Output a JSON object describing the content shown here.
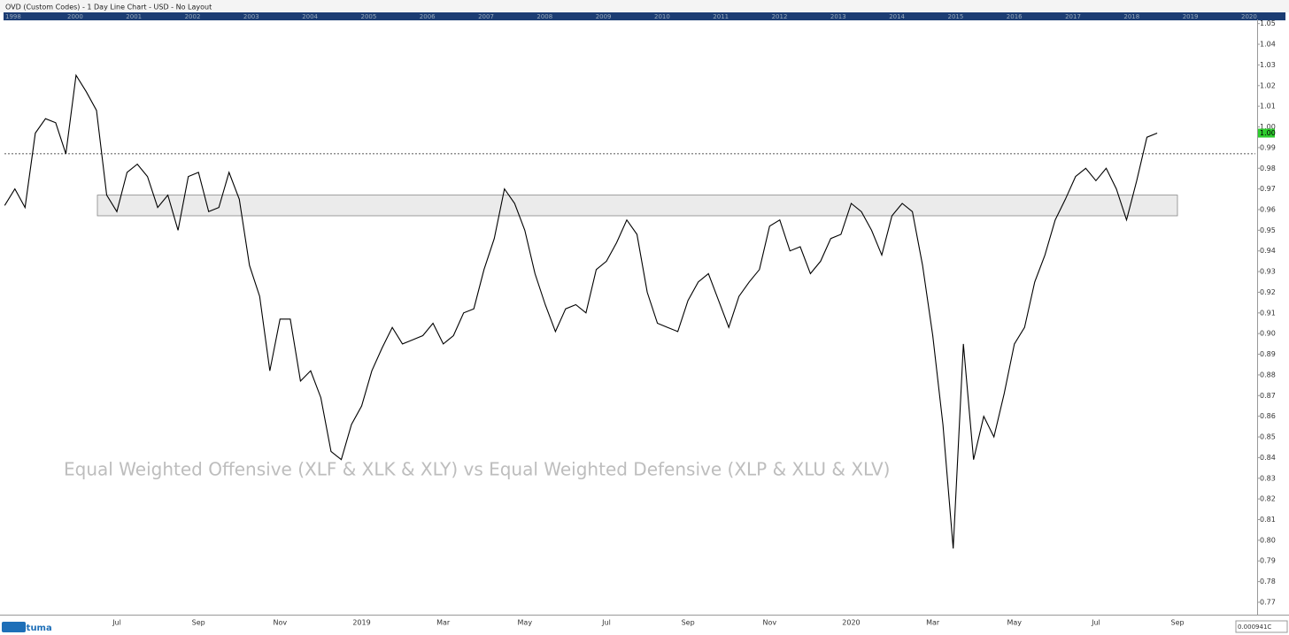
{
  "window_title": "OVD (Custom Codes) - 1 Day Line Chart - USD - No Layout",
  "navigator": {
    "years": [
      "1998",
      "2000",
      "2001",
      "2002",
      "2003",
      "2004",
      "2005",
      "2006",
      "2007",
      "2008",
      "2009",
      "2010",
      "2011",
      "2012",
      "2013",
      "2014",
      "2015",
      "2016",
      "2017",
      "2018",
      "2019",
      "2020"
    ]
  },
  "logo": "Optuma",
  "scale_readout": "0.000941C",
  "chart_data": {
    "type": "line",
    "annotation": "Equal Weighted Offensive (XLF & XLK & XLY) vs Equal Weighted Defensive (XLP & XLU & XLV)",
    "color": "#000000",
    "categories": [
      null,
      null,
      null,
      null,
      null,
      null,
      null,
      null,
      null,
      null,
      null,
      "Jul",
      null,
      null,
      null,
      null,
      null,
      null,
      null,
      "Sep",
      null,
      null,
      null,
      null,
      null,
      null,
      null,
      "Nov",
      null,
      null,
      null,
      null,
      null,
      null,
      null,
      "2019",
      null,
      null,
      null,
      null,
      null,
      null,
      null,
      "Mar",
      null,
      null,
      null,
      null,
      null,
      null,
      null,
      "May",
      null,
      null,
      null,
      null,
      null,
      null,
      null,
      "Jul",
      null,
      null,
      null,
      null,
      null,
      null,
      null,
      "Sep",
      null,
      null,
      null,
      null,
      null,
      null,
      null,
      "Nov",
      null,
      null,
      null,
      null,
      null,
      null,
      null,
      "2020",
      null,
      null,
      null,
      null,
      null,
      null,
      null,
      "Mar",
      null,
      null,
      null,
      null,
      null,
      null,
      null,
      "May",
      null,
      null,
      null,
      null,
      null,
      null,
      null,
      "Jul",
      null,
      null,
      null,
      null,
      null,
      null,
      null,
      "Sep"
    ],
    "values": [
      0.962,
      0.97,
      0.961,
      0.997,
      1.004,
      1.002,
      0.987,
      1.025,
      1.017,
      1.008,
      0.967,
      0.959,
      0.978,
      0.982,
      0.976,
      0.961,
      0.967,
      0.95,
      0.976,
      0.978,
      0.959,
      0.961,
      0.978,
      0.965,
      0.933,
      0.918,
      0.882,
      0.907,
      0.907,
      0.877,
      0.882,
      0.869,
      0.843,
      0.839,
      0.856,
      0.865,
      0.882,
      0.893,
      0.903,
      0.895,
      0.897,
      0.899,
      0.905,
      0.895,
      0.899,
      0.91,
      0.912,
      0.931,
      0.946,
      0.97,
      0.963,
      0.95,
      0.929,
      0.914,
      0.901,
      0.912,
      0.914,
      0.91,
      0.931,
      0.935,
      0.944,
      0.955,
      0.948,
      0.92,
      0.905,
      0.903,
      0.901,
      0.916,
      0.925,
      0.929,
      0.916,
      0.903,
      0.918,
      0.925,
      0.931,
      0.952,
      0.955,
      0.94,
      0.942,
      0.929,
      0.935,
      0.946,
      0.948,
      0.963,
      0.959,
      0.95,
      0.938,
      0.957,
      0.963,
      0.959,
      0.933,
      0.899,
      0.856,
      0.796,
      0.895,
      0.839,
      0.86,
      0.85,
      0.871,
      0.895,
      0.903,
      0.925,
      0.938,
      0.955,
      0.965,
      0.976,
      0.98,
      0.974,
      0.98,
      0.97,
      0.955,
      0.974,
      0.995,
      0.997,
      null,
      null
    ],
    "ylim": [
      0.764,
      1.052
    ],
    "yticks": [
      0.77,
      0.78,
      0.79,
      {
        "value": 0.8,
        "label": "0.80"
      },
      0.81,
      0.82,
      0.83,
      0.84,
      0.85,
      0.86,
      0.87,
      0.88,
      0.89,
      {
        "value": 0.9,
        "label": "0.90"
      },
      0.91,
      0.92,
      0.93,
      0.94,
      0.95,
      0.96,
      0.97,
      0.98,
      0.99,
      {
        "value": 1,
        "label": "1.00"
      },
      1.01,
      1.02,
      1.03,
      1.04,
      1.05
    ],
    "reference_line": 0.987,
    "zone": [
      0.957,
      0.967
    ],
    "last_value": {
      "value": 0.997,
      "label": "1.00"
    }
  }
}
